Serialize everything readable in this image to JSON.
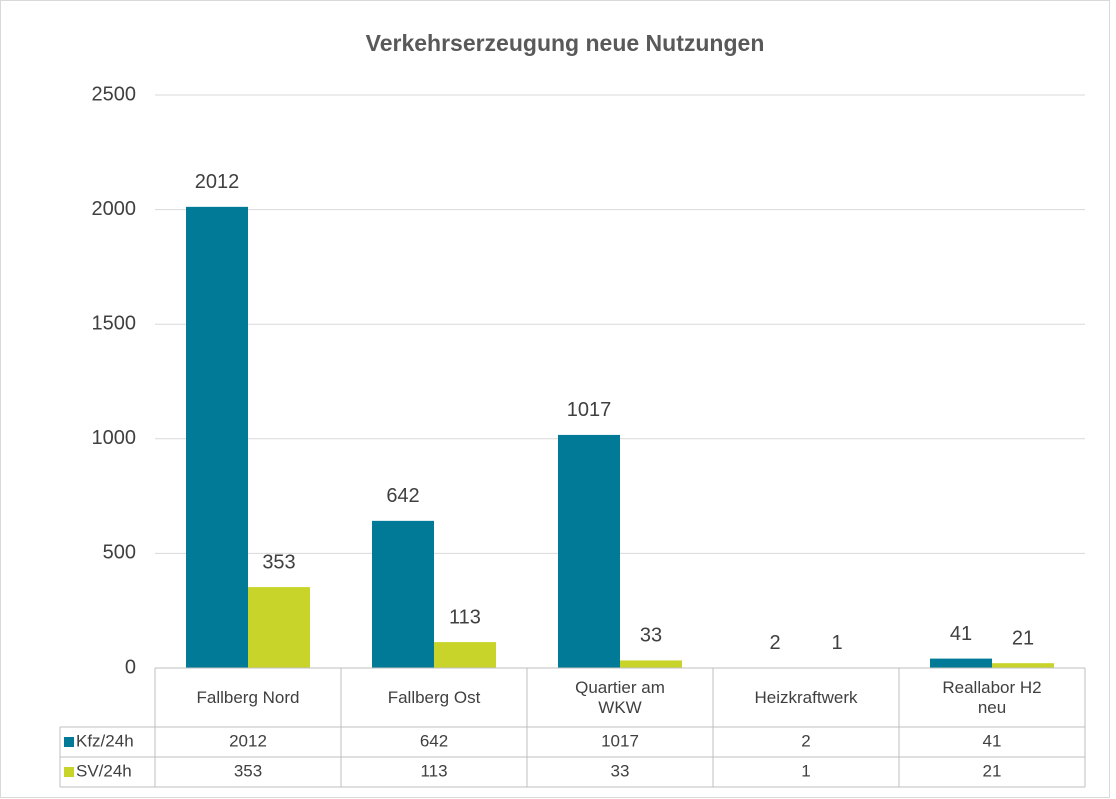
{
  "chart_data": {
    "type": "bar",
    "title": "Verkehrserzeugung neue Nutzungen",
    "categories": [
      "Fallberg Nord",
      "Fallberg Ost",
      "Quartier am WKW",
      "Heizkraftwerk",
      "Reallabor H2 neu"
    ],
    "series": [
      {
        "name": "Kfz/24h",
        "color": "#007a96",
        "values": [
          2012,
          642,
          1017,
          2,
          41
        ]
      },
      {
        "name": "SV/24h",
        "color": "#c8d42a",
        "values": [
          353,
          113,
          33,
          1,
          21
        ]
      }
    ],
    "ylim": [
      0,
      2500
    ],
    "yticks": [
      0,
      500,
      1000,
      1500,
      2000,
      2500
    ],
    "grid": true,
    "data_table": true
  }
}
